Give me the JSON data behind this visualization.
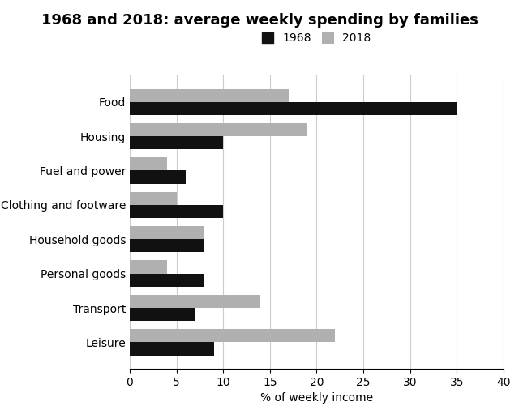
{
  "title": "1968 and 2018: average weekly spending by families",
  "xlabel": "% of weekly income",
  "categories": [
    "Food",
    "Housing",
    "Fuel and power",
    "Clothing and footware",
    "Household goods",
    "Personal goods",
    "Transport",
    "Leisure"
  ],
  "values_1968": [
    35,
    10,
    6,
    10,
    8,
    8,
    7,
    9
  ],
  "values_2018": [
    17,
    19,
    4,
    5,
    8,
    4,
    14,
    22
  ],
  "color_1968": "#111111",
  "color_2018": "#b0b0b0",
  "xlim": [
    0,
    40
  ],
  "xticks": [
    0,
    5,
    10,
    15,
    20,
    25,
    30,
    35,
    40
  ],
  "bar_height": 0.38,
  "legend_labels": [
    "1968",
    "2018"
  ],
  "grid_color": "#cccccc",
  "background_color": "#ffffff",
  "title_fontsize": 13,
  "label_fontsize": 10,
  "tick_fontsize": 10
}
